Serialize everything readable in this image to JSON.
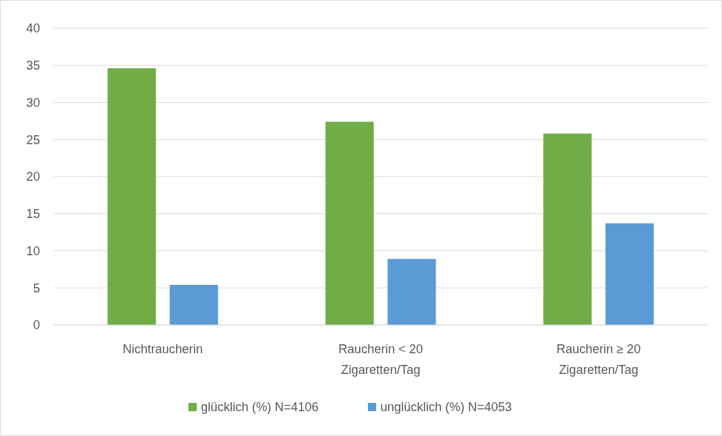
{
  "chart_data": {
    "type": "bar",
    "categories": [
      "Nichtraucherin",
      "Raucherin < 20\nZigaretten/Tag",
      "Raucherin ≥ 20\nZigaretten/Tag"
    ],
    "series": [
      {
        "name": "glücklich (%) N=4106",
        "color": "#70ad47",
        "values": [
          34.6,
          27.4,
          25.8
        ]
      },
      {
        "name": "unglücklich (%) N=4053",
        "color": "#5b9bd5",
        "values": [
          5.4,
          8.9,
          13.7
        ]
      }
    ],
    "ylim": [
      0,
      40
    ],
    "yticks": [
      0,
      5,
      10,
      15,
      20,
      25,
      30,
      35,
      40
    ],
    "grid": "y",
    "legend": "bottom"
  }
}
